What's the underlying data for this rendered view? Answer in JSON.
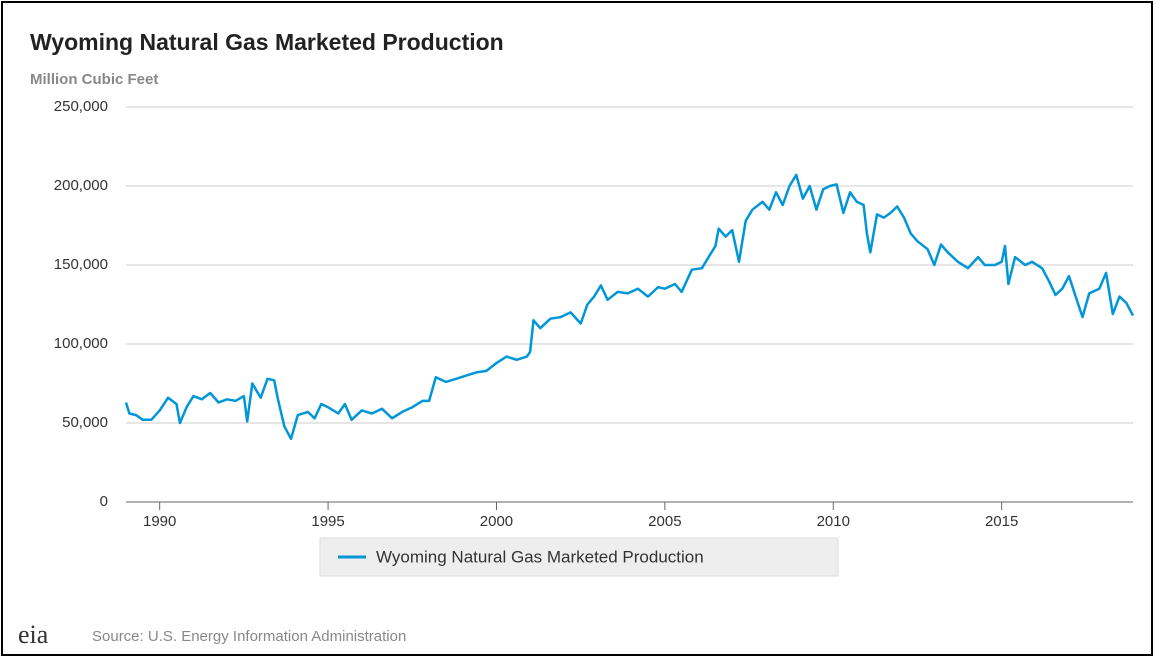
{
  "chart_data": {
    "type": "line",
    "title": "Wyoming Natural Gas Marketed Production",
    "subtitle": "Million Cubic Feet",
    "source": "Source: U.S. Energy Information Administration",
    "logo": "eia",
    "x": [
      1989.0,
      1989.1,
      1989.3,
      1989.5,
      1989.75,
      1990.0,
      1990.25,
      1990.5,
      1990.6,
      1990.8,
      1991.0,
      1991.25,
      1991.5,
      1991.75,
      1992.0,
      1992.25,
      1992.5,
      1992.6,
      1992.75,
      1993.0,
      1993.2,
      1993.4,
      1993.5,
      1993.7,
      1993.9,
      1994.1,
      1994.4,
      1994.6,
      1994.8,
      1995.0,
      1995.3,
      1995.5,
      1995.7,
      1996.0,
      1996.3,
      1996.6,
      1996.9,
      1997.2,
      1997.5,
      1997.8,
      1998.0,
      1998.2,
      1998.5,
      1998.8,
      1999.1,
      1999.4,
      1999.7,
      2000.0,
      2000.3,
      2000.6,
      2000.9,
      2001.0,
      2001.1,
      2001.3,
      2001.6,
      2001.9,
      2002.2,
      2002.5,
      2002.7,
      2002.9,
      2003.1,
      2003.3,
      2003.6,
      2003.9,
      2004.2,
      2004.5,
      2004.8,
      2005.0,
      2005.3,
      2005.5,
      2005.8,
      2006.1,
      2006.3,
      2006.5,
      2006.6,
      2006.8,
      2007.0,
      2007.2,
      2007.4,
      2007.6,
      2007.9,
      2008.1,
      2008.3,
      2008.5,
      2008.7,
      2008.9,
      2009.1,
      2009.3,
      2009.5,
      2009.7,
      2009.9,
      2010.1,
      2010.3,
      2010.5,
      2010.7,
      2010.9,
      2011.0,
      2011.1,
      2011.3,
      2011.5,
      2011.7,
      2011.9,
      2012.1,
      2012.3,
      2012.5,
      2012.8,
      2013.0,
      2013.2,
      2013.4,
      2013.7,
      2014.0,
      2014.3,
      2014.5,
      2014.8,
      2015.0,
      2015.1,
      2015.2,
      2015.4,
      2015.7,
      2015.9,
      2016.2,
      2016.4,
      2016.6,
      2016.8,
      2017.0,
      2017.2,
      2017.4,
      2017.6,
      2017.9,
      2018.1,
      2018.3,
      2018.5,
      2018.7,
      2018.9
    ],
    "series": [
      {
        "name": "Wyoming Natural Gas Marketed Production",
        "color": "#0096d7",
        "values": [
          63000,
          56000,
          55000,
          52000,
          52000,
          58000,
          66000,
          62000,
          50000,
          60000,
          67000,
          65000,
          69000,
          63000,
          65000,
          64000,
          67000,
          51000,
          75000,
          66000,
          78000,
          77000,
          66000,
          48000,
          40000,
          55000,
          57000,
          53000,
          62000,
          60000,
          56000,
          62000,
          52000,
          58000,
          56000,
          59000,
          53000,
          57000,
          60000,
          64000,
          64000,
          79000,
          76000,
          78000,
          80000,
          82000,
          83000,
          88000,
          92000,
          90000,
          92000,
          95000,
          115000,
          110000,
          116000,
          117000,
          120000,
          113000,
          125000,
          130000,
          137000,
          128000,
          133000,
          132000,
          135000,
          130000,
          136000,
          135000,
          138000,
          133000,
          147000,
          148000,
          155000,
          162000,
          173000,
          168000,
          172000,
          152000,
          178000,
          185000,
          190000,
          185000,
          196000,
          188000,
          200000,
          207000,
          192000,
          200000,
          185000,
          198000,
          200000,
          201000,
          183000,
          196000,
          190000,
          188000,
          170000,
          158000,
          182000,
          180000,
          183000,
          187000,
          180000,
          170000,
          165000,
          160000,
          150000,
          163000,
          158000,
          152000,
          148000,
          155000,
          150000,
          150000,
          152000,
          162000,
          138000,
          155000,
          150000,
          152000,
          148000,
          140000,
          131000,
          135000,
          143000,
          130000,
          117000,
          132000,
          135000,
          145000,
          119000,
          130000,
          126000,
          118000
        ]
      }
    ],
    "xlim": [
      1989,
      2018.9
    ],
    "xticks": [
      1990,
      1995,
      2000,
      2005,
      2010,
      2015
    ],
    "ylim": [
      0,
      250000
    ],
    "yticks": [
      0,
      {
        "value": 50000,
        "label": "50,000"
      },
      {
        "value": 100000,
        "label": "100,000"
      },
      {
        "value": 150000,
        "label": "150,000"
      },
      {
        "value": 200000,
        "label": "200,000"
      },
      {
        "value": 250000,
        "label": "250,000"
      }
    ],
    "grid": true
  }
}
